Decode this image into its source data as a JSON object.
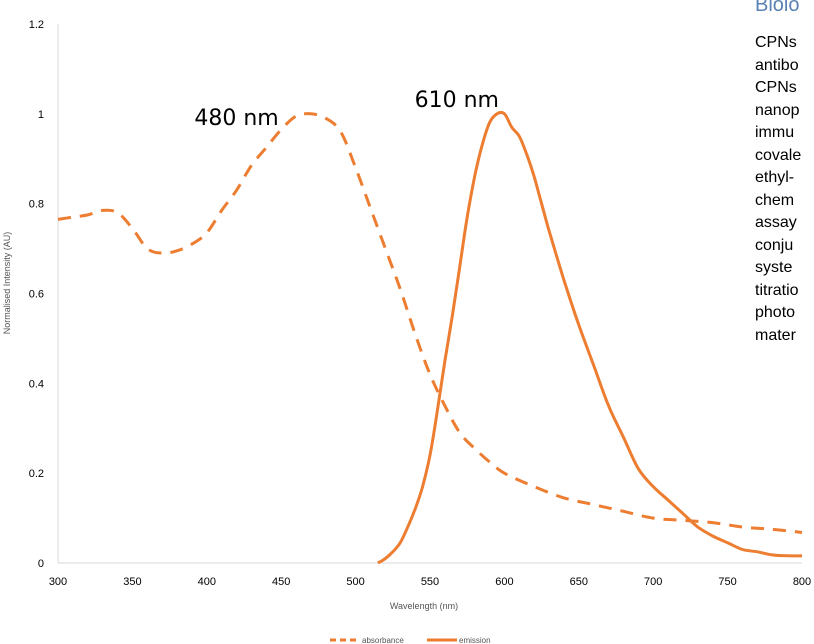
{
  "side_panel": {
    "title": "Biolo",
    "lines": [
      "CPNs",
      "antibo",
      "CPNs",
      "nanop",
      "immu",
      "covale",
      "ethyl-",
      "chem",
      "assay",
      "conju",
      "syste",
      "titratio",
      "photo",
      "mater"
    ]
  },
  "chart_data": {
    "type": "line",
    "xlabel": "Wavelength (nm)",
    "ylabel": "Normalised Intensity (AU)",
    "xlim": [
      300,
      800
    ],
    "ylim": [
      0,
      1.2
    ],
    "x_ticks": [
      "300",
      "350",
      "400",
      "450",
      "500",
      "550",
      "600",
      "650",
      "700",
      "750",
      "800"
    ],
    "y_ticks": [
      "0",
      "0.2",
      "0.4",
      "0.6",
      "0.8",
      "1",
      "1.2"
    ],
    "grid": false,
    "legend_position": "bottom",
    "annotations": [
      {
        "text": "480 nm",
        "x": 420,
        "y": 0.975
      },
      {
        "text": "610 nm",
        "x": 568,
        "y": 1.015
      }
    ],
    "series": [
      {
        "name": "absorbance",
        "style": "dashed",
        "color": "#ed7d31",
        "x": [
          300,
          310,
          320,
          330,
          340,
          350,
          360,
          370,
          380,
          390,
          400,
          410,
          420,
          430,
          440,
          450,
          460,
          470,
          480,
          490,
          500,
          510,
          520,
          530,
          540,
          550,
          560,
          570,
          580,
          590,
          600,
          620,
          640,
          660,
          680,
          700,
          720,
          740,
          760,
          780,
          800
        ],
        "y": [
          0.765,
          0.77,
          0.775,
          0.785,
          0.78,
          0.745,
          0.7,
          0.69,
          0.695,
          0.71,
          0.735,
          0.785,
          0.83,
          0.885,
          0.925,
          0.965,
          0.995,
          1.0,
          0.99,
          0.96,
          0.88,
          0.79,
          0.7,
          0.61,
          0.51,
          0.42,
          0.35,
          0.29,
          0.255,
          0.225,
          0.2,
          0.17,
          0.145,
          0.13,
          0.115,
          0.1,
          0.095,
          0.09,
          0.08,
          0.075,
          0.068
        ]
      },
      {
        "name": "emission",
        "style": "solid",
        "color": "#ed7d31",
        "x": [
          515,
          520,
          525,
          530,
          535,
          540,
          545,
          550,
          555,
          560,
          565,
          570,
          575,
          580,
          585,
          590,
          595,
          600,
          605,
          610,
          615,
          620,
          625,
          630,
          640,
          650,
          660,
          670,
          680,
          690,
          700,
          710,
          720,
          730,
          740,
          750,
          760,
          770,
          780,
          790,
          800
        ],
        "y": [
          0.0,
          0.01,
          0.025,
          0.045,
          0.08,
          0.12,
          0.17,
          0.24,
          0.34,
          0.45,
          0.55,
          0.66,
          0.77,
          0.86,
          0.93,
          0.98,
          1.0,
          1.0,
          0.97,
          0.95,
          0.91,
          0.86,
          0.8,
          0.74,
          0.63,
          0.53,
          0.44,
          0.35,
          0.28,
          0.21,
          0.17,
          0.14,
          0.11,
          0.08,
          0.06,
          0.045,
          0.03,
          0.025,
          0.018,
          0.016,
          0.016
        ]
      }
    ]
  }
}
